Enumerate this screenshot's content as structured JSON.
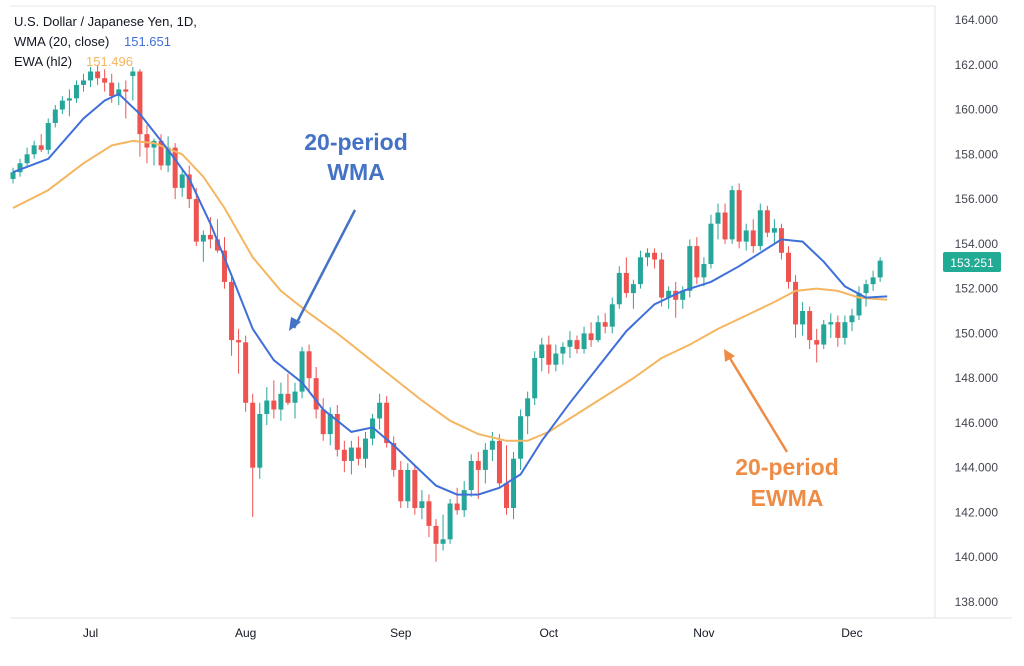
{
  "legend": {
    "symbol": "U.S. Dollar / Japanese Yen, 1D,",
    "wma_label": "WMA (20, close)",
    "wma_value": "151.651",
    "ewa_label": "EWA (hl2)",
    "ewa_value": "151.496"
  },
  "annotations": {
    "wma_line1": "20-period",
    "wma_line2": "WMA",
    "ewma_line1": "20-period",
    "ewma_line2": "EWMA"
  },
  "last_price_badge": "153.251",
  "colors": {
    "up": "#26a69a",
    "down": "#ef5350",
    "wma": "#3f6fd8",
    "ewma": "#f4b660",
    "wma_annotation": "#4472c4",
    "ewma_annotation": "#ee8c46",
    "badge": "#22ab94"
  },
  "chart_data": {
    "type": "candlestick",
    "title": "U.S. Dollar / Japanese Yen, 1D",
    "ylim": [
      137,
      165
    ],
    "y_ticks": [
      "138.000",
      "140.000",
      "142.000",
      "144.000",
      "146.000",
      "148.000",
      "150.000",
      "152.000",
      "154.000",
      "156.000",
      "158.000",
      "160.000",
      "162.000",
      "164.000"
    ],
    "x_ticks": [
      {
        "label": "Jul",
        "i": 11
      },
      {
        "label": "Aug",
        "i": 33
      },
      {
        "label": "Sep",
        "i": 55
      },
      {
        "label": "Oct",
        "i": 76
      },
      {
        "label": "Nov",
        "i": 98
      },
      {
        "label": "Dec",
        "i": 119
      }
    ],
    "candles": [
      [
        156.9,
        157.4,
        156.7,
        157.2
      ],
      [
        157.2,
        157.8,
        157.0,
        157.6
      ],
      [
        157.6,
        158.3,
        157.4,
        158.0
      ],
      [
        158.0,
        158.6,
        157.8,
        158.4
      ],
      [
        158.4,
        158.9,
        158.1,
        158.2
      ],
      [
        158.2,
        159.6,
        158.0,
        159.4
      ],
      [
        159.4,
        160.2,
        159.2,
        160.0
      ],
      [
        160.0,
        160.6,
        159.8,
        160.4
      ],
      [
        160.4,
        160.9,
        159.7,
        160.5
      ],
      [
        160.5,
        161.3,
        160.3,
        161.1
      ],
      [
        161.1,
        161.6,
        160.8,
        161.3
      ],
      [
        161.3,
        161.9,
        161.0,
        161.7
      ],
      [
        161.7,
        162.0,
        161.1,
        161.4
      ],
      [
        161.4,
        161.8,
        160.8,
        161.2
      ],
      [
        161.2,
        161.6,
        160.3,
        160.6
      ],
      [
        160.6,
        161.2,
        160.2,
        160.9
      ],
      [
        160.9,
        161.3,
        159.6,
        160.8
      ],
      [
        161.5,
        161.9,
        160.4,
        161.7
      ],
      [
        161.7,
        161.8,
        157.9,
        158.9
      ],
      [
        158.9,
        159.3,
        157.6,
        158.3
      ],
      [
        158.3,
        158.7,
        157.5,
        158.6
      ],
      [
        158.6,
        158.9,
        157.3,
        157.5
      ],
      [
        157.5,
        158.8,
        157.2,
        158.3
      ],
      [
        158.3,
        158.5,
        156.0,
        156.5
      ],
      [
        156.5,
        157.3,
        156.1,
        157.1
      ],
      [
        157.1,
        157.5,
        155.6,
        156.0
      ],
      [
        156.0,
        156.5,
        153.9,
        154.1
      ],
      [
        154.1,
        154.6,
        153.2,
        154.4
      ],
      [
        154.4,
        155.2,
        153.8,
        154.2
      ],
      [
        154.2,
        155.1,
        153.6,
        153.7
      ],
      [
        153.7,
        154.3,
        152.0,
        152.3
      ],
      [
        152.3,
        152.6,
        149.0,
        149.7
      ],
      [
        149.7,
        150.2,
        148.2,
        149.6
      ],
      [
        149.6,
        149.9,
        146.5,
        146.9
      ],
      [
        146.9,
        147.3,
        141.8,
        144.0
      ],
      [
        144.0,
        146.9,
        143.5,
        146.4
      ],
      [
        146.4,
        147.6,
        145.9,
        147.0
      ],
      [
        147.0,
        147.9,
        146.2,
        146.6
      ],
      [
        146.6,
        147.8,
        146.1,
        147.3
      ],
      [
        147.3,
        148.2,
        146.8,
        146.9
      ],
      [
        146.9,
        147.8,
        146.2,
        147.4
      ],
      [
        147.4,
        149.4,
        147.1,
        149.2
      ],
      [
        149.2,
        149.5,
        147.4,
        148.0
      ],
      [
        148.0,
        148.5,
        146.2,
        146.6
      ],
      [
        146.6,
        147.1,
        145.2,
        145.5
      ],
      [
        145.5,
        146.7,
        145.0,
        146.4
      ],
      [
        146.4,
        146.8,
        144.5,
        144.8
      ],
      [
        144.8,
        145.2,
        143.8,
        144.3
      ],
      [
        144.3,
        145.2,
        143.7,
        144.9
      ],
      [
        144.9,
        145.4,
        144.1,
        144.4
      ],
      [
        144.4,
        145.6,
        144.0,
        145.3
      ],
      [
        145.3,
        146.4,
        145.0,
        146.2
      ],
      [
        146.2,
        147.3,
        145.7,
        146.9
      ],
      [
        146.9,
        147.2,
        144.9,
        145.1
      ],
      [
        145.1,
        145.4,
        143.6,
        143.9
      ],
      [
        143.9,
        144.3,
        142.2,
        142.5
      ],
      [
        142.5,
        144.2,
        142.2,
        143.9
      ],
      [
        143.9,
        144.1,
        141.9,
        142.2
      ],
      [
        142.2,
        143.0,
        141.7,
        142.5
      ],
      [
        142.5,
        142.8,
        140.9,
        141.4
      ],
      [
        141.4,
        141.7,
        139.8,
        140.6
      ],
      [
        140.6,
        141.9,
        140.3,
        140.8
      ],
      [
        140.8,
        142.6,
        140.6,
        142.4
      ],
      [
        142.4,
        143.1,
        141.9,
        142.1
      ],
      [
        142.1,
        143.4,
        141.8,
        143.0
      ],
      [
        143.0,
        144.6,
        142.7,
        144.3
      ],
      [
        144.3,
        144.7,
        142.6,
        143.9
      ],
      [
        143.9,
        145.1,
        143.3,
        144.8
      ],
      [
        144.8,
        145.6,
        144.3,
        145.2
      ],
      [
        145.2,
        145.5,
        143.1,
        143.3
      ],
      [
        143.3,
        145.0,
        141.9,
        142.2
      ],
      [
        142.2,
        144.7,
        141.7,
        144.4
      ],
      [
        144.4,
        146.6,
        143.9,
        146.3
      ],
      [
        146.3,
        147.4,
        145.5,
        147.1
      ],
      [
        147.1,
        149.2,
        146.8,
        148.9
      ],
      [
        148.9,
        149.8,
        148.3,
        149.5
      ],
      [
        149.5,
        149.9,
        148.2,
        148.6
      ],
      [
        148.6,
        149.5,
        148.3,
        149.1
      ],
      [
        149.1,
        149.6,
        148.6,
        149.4
      ],
      [
        149.4,
        150.1,
        148.9,
        149.7
      ],
      [
        149.7,
        149.9,
        149.1,
        149.3
      ],
      [
        149.3,
        150.3,
        149.1,
        150.0
      ],
      [
        150.0,
        150.5,
        149.4,
        149.7
      ],
      [
        149.7,
        150.8,
        149.6,
        150.5
      ],
      [
        150.5,
        150.9,
        150.0,
        150.3
      ],
      [
        150.3,
        151.6,
        150.0,
        151.3
      ],
      [
        151.3,
        153.0,
        151.1,
        152.7
      ],
      [
        152.7,
        153.4,
        151.6,
        151.8
      ],
      [
        151.8,
        152.4,
        151.1,
        152.2
      ],
      [
        152.2,
        153.7,
        152.0,
        153.4
      ],
      [
        153.4,
        153.8,
        153.0,
        153.6
      ],
      [
        153.6,
        153.8,
        152.9,
        153.3
      ],
      [
        153.3,
        153.6,
        151.2,
        151.6
      ],
      [
        151.6,
        152.1,
        151.1,
        151.9
      ],
      [
        151.9,
        152.3,
        150.7,
        151.5
      ],
      [
        151.5,
        152.1,
        151.1,
        151.9
      ],
      [
        151.9,
        154.2,
        151.6,
        153.9
      ],
      [
        153.9,
        154.3,
        152.2,
        152.5
      ],
      [
        152.5,
        153.4,
        152.1,
        153.1
      ],
      [
        153.1,
        155.3,
        152.9,
        154.9
      ],
      [
        154.9,
        155.8,
        154.2,
        155.4
      ],
      [
        155.4,
        155.8,
        154.0,
        154.2
      ],
      [
        154.2,
        156.6,
        154.0,
        156.4
      ],
      [
        156.4,
        156.7,
        153.8,
        154.1
      ],
      [
        154.1,
        154.9,
        153.7,
        154.6
      ],
      [
        154.6,
        155.1,
        153.6,
        153.9
      ],
      [
        153.9,
        155.8,
        153.7,
        155.5
      ],
      [
        155.5,
        155.7,
        154.3,
        154.5
      ],
      [
        154.5,
        155.1,
        154.0,
        154.7
      ],
      [
        154.7,
        154.9,
        153.3,
        153.6
      ],
      [
        153.6,
        153.9,
        152.0,
        152.3
      ],
      [
        152.3,
        152.6,
        149.8,
        150.4
      ],
      [
        150.4,
        151.4,
        149.9,
        151.0
      ],
      [
        151.0,
        151.2,
        149.3,
        149.7
      ],
      [
        149.7,
        150.2,
        148.7,
        149.5
      ],
      [
        149.5,
        150.6,
        149.3,
        150.4
      ],
      [
        150.4,
        150.9,
        149.8,
        150.5
      ],
      [
        150.5,
        150.8,
        149.4,
        149.8
      ],
      [
        149.8,
        150.8,
        149.5,
        150.5
      ],
      [
        150.5,
        151.1,
        150.1,
        150.8
      ],
      [
        150.8,
        152.1,
        150.6,
        151.8
      ],
      [
        151.8,
        152.4,
        151.2,
        152.2
      ],
      [
        152.2,
        152.8,
        151.9,
        152.5
      ],
      [
        152.5,
        153.4,
        152.3,
        153.25
      ]
    ],
    "wma": [
      [
        0,
        157.2
      ],
      [
        5,
        157.8
      ],
      [
        10,
        159.6
      ],
      [
        13,
        160.4
      ],
      [
        15,
        160.7
      ],
      [
        18,
        159.8
      ],
      [
        22,
        158.2
      ],
      [
        25,
        156.9
      ],
      [
        28,
        154.9
      ],
      [
        31,
        152.6
      ],
      [
        34,
        150.2
      ],
      [
        37,
        148.8
      ],
      [
        41,
        147.8
      ],
      [
        44,
        146.6
      ],
      [
        48,
        145.6
      ],
      [
        51,
        145.8
      ],
      [
        54,
        145.0
      ],
      [
        57,
        144.1
      ],
      [
        60,
        143.2
      ],
      [
        63,
        142.8
      ],
      [
        66,
        142.8
      ],
      [
        69,
        143.1
      ],
      [
        72,
        143.7
      ],
      [
        75,
        145.2
      ],
      [
        79,
        146.9
      ],
      [
        83,
        148.5
      ],
      [
        87,
        150.1
      ],
      [
        91,
        151.3
      ],
      [
        95,
        151.9
      ],
      [
        99,
        152.3
      ],
      [
        103,
        153.0
      ],
      [
        106,
        153.6
      ],
      [
        109,
        154.2
      ],
      [
        112,
        154.1
      ],
      [
        115,
        153.2
      ],
      [
        118,
        152.1
      ],
      [
        121,
        151.6
      ],
      [
        124,
        151.65
      ]
    ],
    "ewma": [
      [
        0,
        155.6
      ],
      [
        5,
        156.4
      ],
      [
        10,
        157.6
      ],
      [
        14,
        158.4
      ],
      [
        17,
        158.6
      ],
      [
        20,
        158.5
      ],
      [
        24,
        158.0
      ],
      [
        27,
        157.0
      ],
      [
        30,
        155.6
      ],
      [
        34,
        153.4
      ],
      [
        38,
        151.9
      ],
      [
        42,
        150.9
      ],
      [
        46,
        150.0
      ],
      [
        50,
        149.0
      ],
      [
        54,
        148.0
      ],
      [
        58,
        147.0
      ],
      [
        62,
        146.1
      ],
      [
        66,
        145.5
      ],
      [
        70,
        145.2
      ],
      [
        73,
        145.2
      ],
      [
        76,
        145.6
      ],
      [
        80,
        146.4
      ],
      [
        84,
        147.2
      ],
      [
        88,
        148.0
      ],
      [
        92,
        148.9
      ],
      [
        96,
        149.5
      ],
      [
        100,
        150.2
      ],
      [
        104,
        150.8
      ],
      [
        108,
        151.4
      ],
      [
        111,
        151.9
      ],
      [
        114,
        152.0
      ],
      [
        117,
        151.9
      ],
      [
        120,
        151.6
      ],
      [
        124,
        151.5
      ]
    ]
  }
}
